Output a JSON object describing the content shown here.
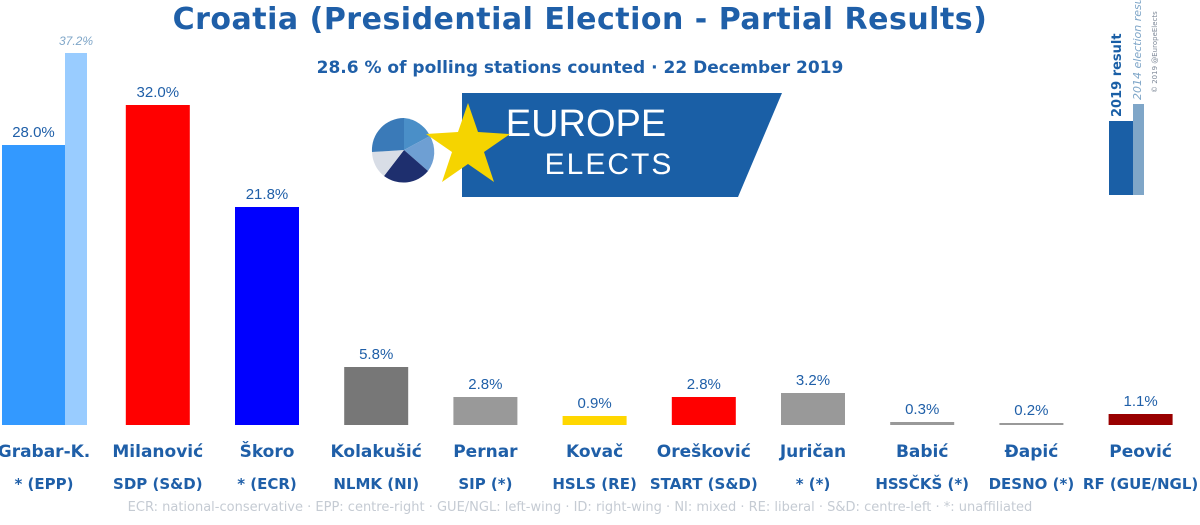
{
  "title": "Croatia (Presidential Election - Partial Results)",
  "subtitle": "28.6 % of polling stations counted · 22 December 2019",
  "footer": "ECR: national-conservative · EPP: centre-right · GUE/NGL: left-wing · ID: right-wing · NI: mixed · RE: liberal · S&D: centre-left · *: unaffiliated",
  "logo": {
    "line1": "EUROPE",
    "line2": "ELECTS"
  },
  "legend": {
    "current": "2019 result",
    "previous": "2014 election result",
    "credit": "© 2019 @EuropeElects"
  },
  "colors": {
    "title": "#1f5fa8",
    "logo_banner": "#1a5fa6",
    "logo_star": "#f5d400",
    "legend_current": "#1a5fa6",
    "legend_previous": "#7fa6c8"
  },
  "chart_data": {
    "type": "bar",
    "title": "Croatia (Presidential Election - Partial Results)",
    "ylim": [
      0,
      40
    ],
    "unit": "%",
    "series": [
      {
        "name": "2019 result",
        "values": [
          28.0,
          32.0,
          21.8,
          5.8,
          2.8,
          0.9,
          2.8,
          3.2,
          0.3,
          0.2,
          1.1
        ]
      },
      {
        "name": "2014 election result",
        "values": [
          37.2,
          null,
          null,
          null,
          null,
          null,
          null,
          null,
          null,
          null,
          null
        ]
      }
    ],
    "candidates": [
      {
        "name": "Grabar-K.",
        "party": "* (EPP)",
        "value": 28.0,
        "label": "28.0%",
        "color": "#3399ff",
        "prev": 37.2,
        "prev_label": "37.2%",
        "prev_color": "#99ccff"
      },
      {
        "name": "Milanović",
        "party": "SDP (S&D)",
        "value": 32.0,
        "label": "32.0%",
        "color": "#ff0000"
      },
      {
        "name": "Škoro",
        "party": "* (ECR)",
        "value": 21.8,
        "label": "21.8%",
        "color": "#0000ff"
      },
      {
        "name": "Kolakušić",
        "party": "NLMK (NI)",
        "value": 5.8,
        "label": "5.8%",
        "color": "#777777"
      },
      {
        "name": "Pernar",
        "party": "SIP (*)",
        "value": 2.8,
        "label": "2.8%",
        "color": "#999999"
      },
      {
        "name": "Kovač",
        "party": "HSLS (RE)",
        "value": 0.9,
        "label": "0.9%",
        "color": "#ffd700"
      },
      {
        "name": "Orešković",
        "party": "START (S&D)",
        "value": 2.8,
        "label": "2.8%",
        "color": "#ff0000"
      },
      {
        "name": "Juričan",
        "party": "* (*)",
        "value": 3.2,
        "label": "3.2%",
        "color": "#999999"
      },
      {
        "name": "Babić",
        "party": "HSSČKŠ (*)",
        "value": 0.3,
        "label": "0.3%",
        "color": "#999999"
      },
      {
        "name": "Đapić",
        "party": "DESNO (*)",
        "value": 0.2,
        "label": "0.2%",
        "color": "#999999"
      },
      {
        "name": "Peović",
        "party": "RF (GUE/NGL)",
        "value": 1.1,
        "label": "1.1%",
        "color": "#990000"
      }
    ]
  }
}
